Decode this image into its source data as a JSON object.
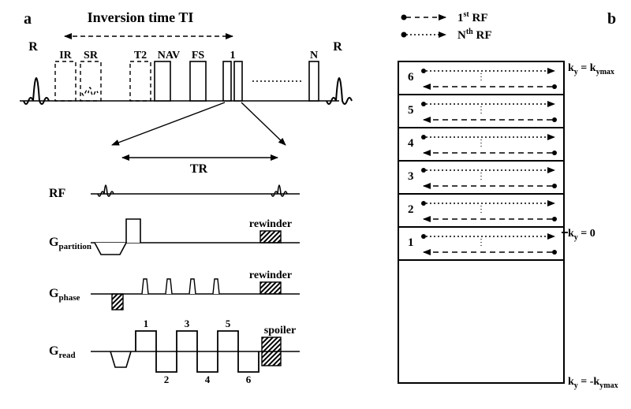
{
  "panel_a": {
    "label": "a",
    "ti_label": "Inversion time TI",
    "tr_label": "TR",
    "rf_label": "RF",
    "gpart_label": "G",
    "gpart_sub": "partition",
    "gphase_label": "G",
    "gphase_sub": "phase",
    "gread_label": "G",
    "gread_sub": "read",
    "rewinder1": "rewinder",
    "rewinder2": "rewinder",
    "spoiler": "spoiler",
    "top_labels": {
      "R1": "R",
      "IR": "IR",
      "SR": "SR",
      "T2": "T2",
      "NAV": "NAV",
      "FS": "FS",
      "one": "1",
      "N": "N",
      "R2": "R"
    },
    "gread_nums": [
      "1",
      "2",
      "3",
      "4",
      "5",
      "6"
    ]
  },
  "panel_b": {
    "label": "b",
    "legend": {
      "first": [
        "1",
        "st",
        "    RF"
      ],
      "nth": [
        "N",
        "th",
        "    RF"
      ]
    },
    "rows": [
      "6",
      "5",
      "4",
      "3",
      "2",
      "1"
    ],
    "k_top": [
      "k",
      "y",
      " = k",
      "ymax"
    ],
    "k_mid": [
      "k",
      "y",
      " = 0"
    ],
    "k_bot": [
      "k",
      "y",
      " = -k",
      "ymax"
    ]
  },
  "style": {
    "stroke": "#000000",
    "stroke_w": 1.6,
    "bg": "#ffffff",
    "font_label": 18,
    "font_small": 14,
    "font_tiny": 11,
    "font_bold": 20
  }
}
